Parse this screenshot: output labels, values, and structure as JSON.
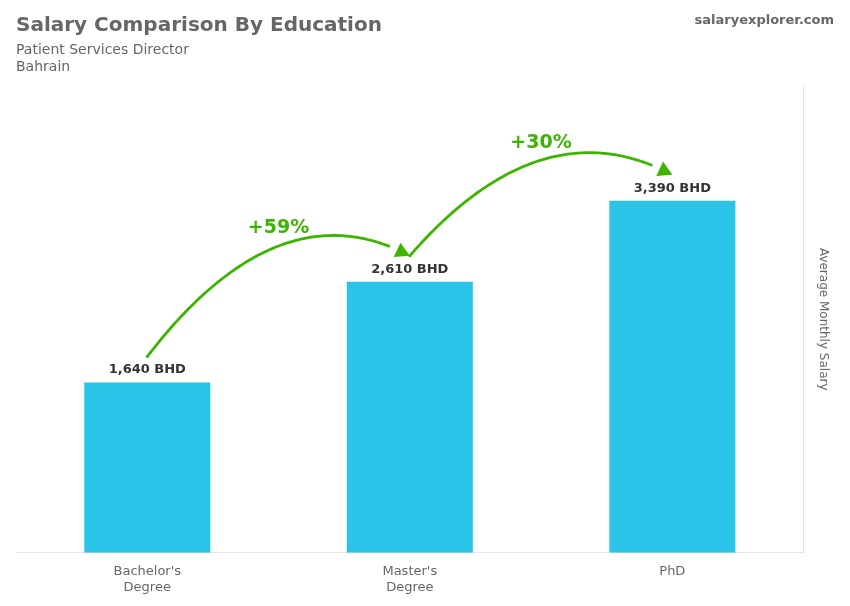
{
  "chart_data": {
    "type": "bar",
    "title": "Salary Comparison By Education",
    "subtitle": [
      "Patient Services Director",
      "Bahrain"
    ],
    "ylabel": "Average Monthly Salary",
    "categories": [
      "Bachelor's\nDegree",
      "Master's\nDegree",
      "PhD"
    ],
    "values": [
      1640,
      2610,
      3390
    ],
    "value_labels": [
      "1,640 BHD",
      "2,610 BHD",
      "3,390 BHD"
    ],
    "data_labels": true,
    "color": "#29c4e8",
    "ylim": [
      0,
      4500
    ],
    "grid": false,
    "tick_labels": "x",
    "annotations": [
      {
        "text": "salaryexplorer.com"
      },
      {
        "text": "+59%",
        "from": 0,
        "to": 1
      },
      {
        "text": "+30%",
        "from": 1,
        "to": 2
      }
    ]
  }
}
